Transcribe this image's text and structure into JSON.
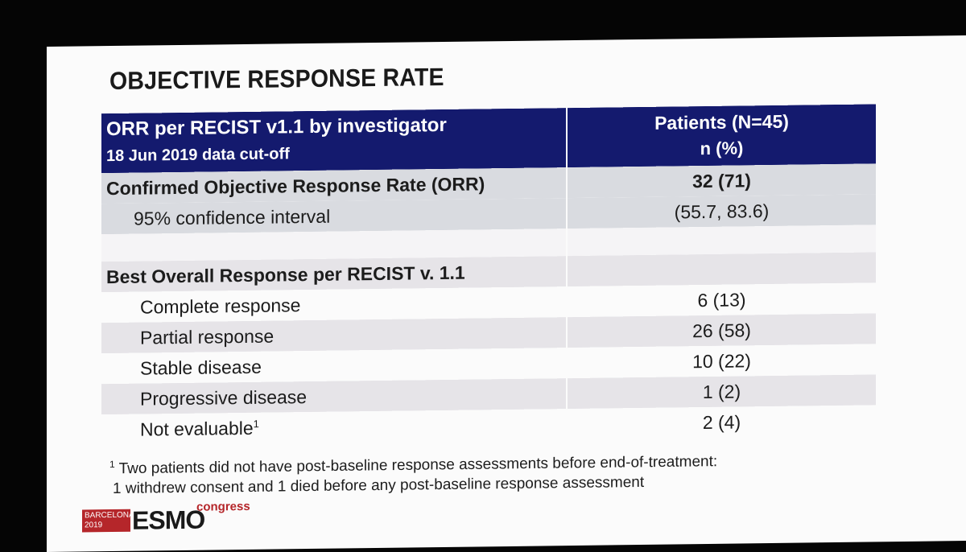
{
  "slide": {
    "title": "OBJECTIVE RESPONSE RATE"
  },
  "table": {
    "header": {
      "left_line1": "ORR per RECIST v1.1 by investigator",
      "left_line2": "18 Jun 2019 data cut-off",
      "right_line1": "Patients (N=45)",
      "right_line2": "n (%)"
    },
    "orr": {
      "label": "Confirmed Objective Response Rate (ORR)",
      "value": "32 (71)",
      "ci_label": "95% confidence interval",
      "ci_value": "(55.7, 83.6)"
    },
    "best_overall": {
      "section_label": "Best Overall Response per RECIST v. 1.1",
      "rows": [
        {
          "label": "Complete response",
          "value": "6 (13)"
        },
        {
          "label": "Partial response",
          "value": "26 (58)"
        },
        {
          "label": "Stable disease",
          "value": "10 (22)"
        },
        {
          "label": "Progressive disease",
          "value": "1 (2)"
        },
        {
          "label": "Not evaluable",
          "superscript": "1",
          "value": "2 (4)"
        }
      ]
    }
  },
  "footnote": {
    "marker": "1",
    "line1": " Two patients did not have post-baseline response assessments before end-of-treatment:",
    "line2": "1 withdrew consent and 1 died before any post-baseline response assessment"
  },
  "logo": {
    "city": "BARCELONA",
    "year": "2019",
    "brand": "ESMO",
    "suffix": "congress"
  },
  "colors": {
    "header_bg": "#141a6e",
    "accent_red": "#b5262a"
  }
}
